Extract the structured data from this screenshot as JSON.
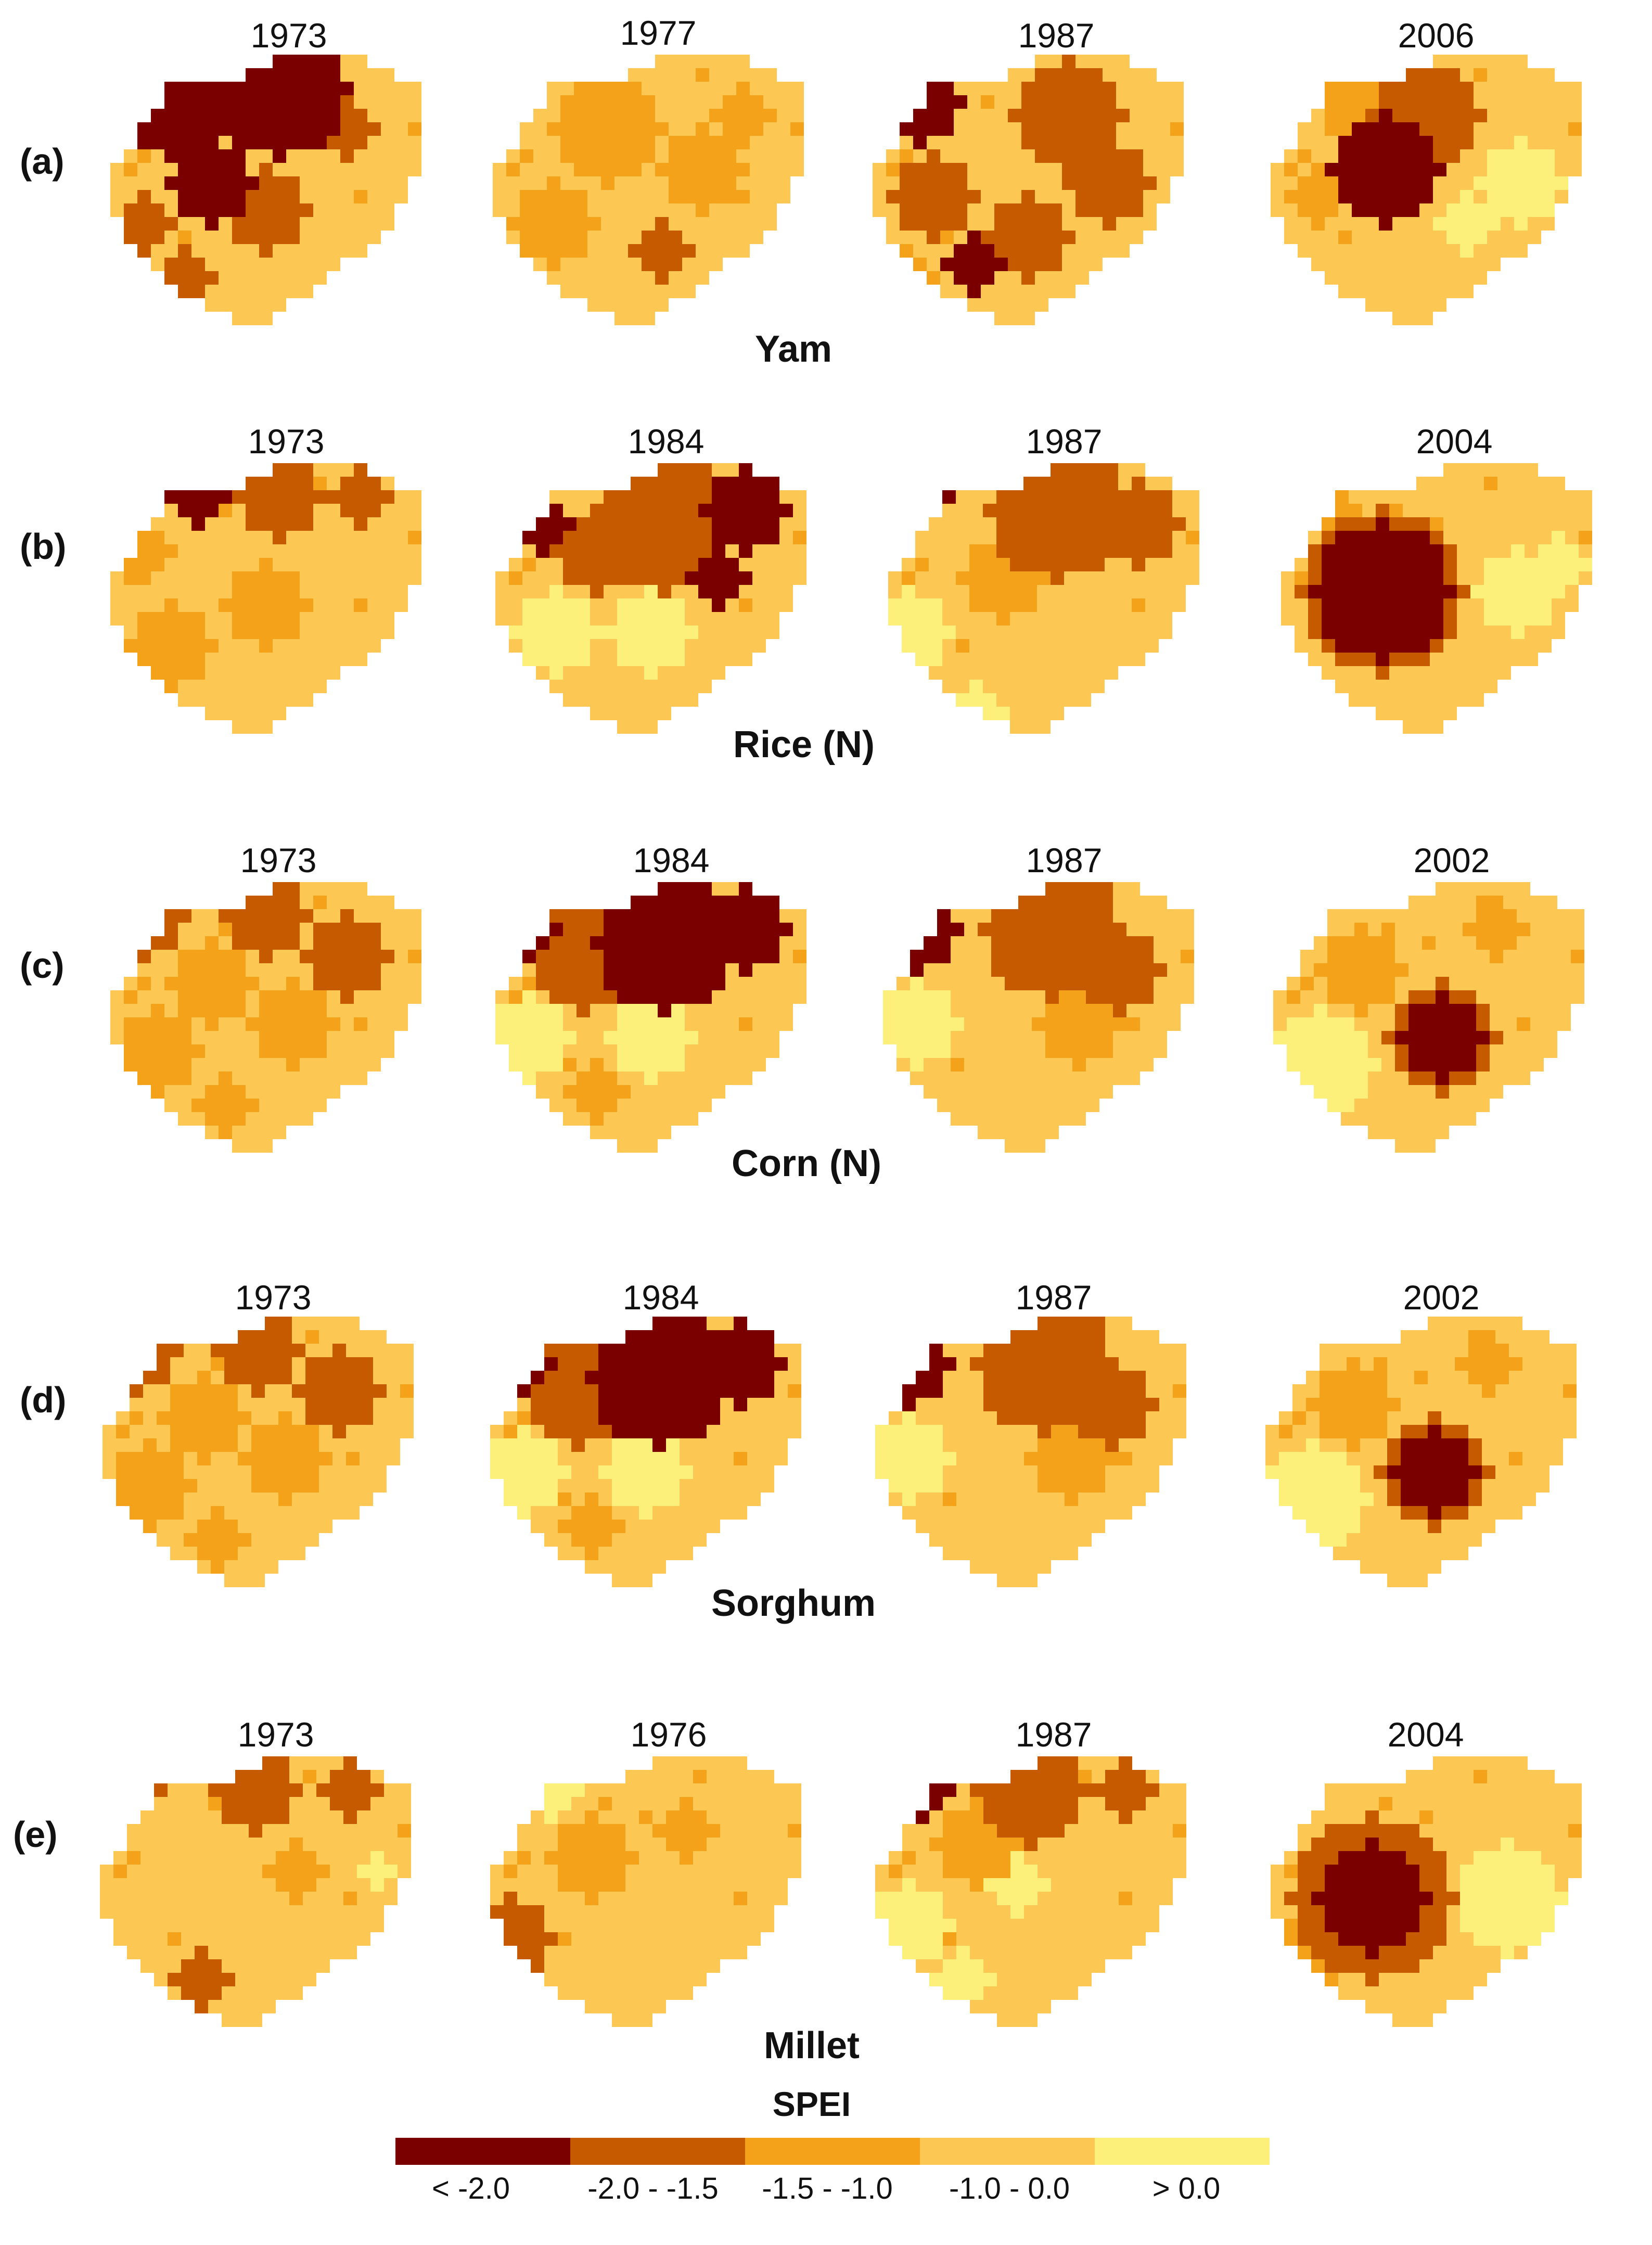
{
  "legend": {
    "title": "SPEI",
    "classes": [
      {
        "label": "< -2.0",
        "color": "#7a0000"
      },
      {
        "label": "-2.0 - -1.5",
        "color": "#c65a00"
      },
      {
        "label": "-1.5 - -1.0",
        "color": "#f3a21a"
      },
      {
        "label": "-1.0 - 0.0",
        "color": "#fcc752"
      },
      {
        "label": "> 0.0",
        "color": "#fdf07a"
      }
    ]
  },
  "rows": [
    {
      "label": "(a)",
      "crop": "Yam",
      "years": [
        "1973",
        "1977",
        "1987",
        "2006"
      ]
    },
    {
      "label": "(b)",
      "crop": "Rice (N)",
      "years": [
        "1973",
        "1984",
        "1987",
        "2004"
      ]
    },
    {
      "label": "(c)",
      "crop": "Corn (N)",
      "years": [
        "1973",
        "1984",
        "1987",
        "2002"
      ]
    },
    {
      "label": "(d)",
      "crop": "Sorghum",
      "years": [
        "1973",
        "1984",
        "1987",
        "2002"
      ]
    },
    {
      "label": "(e)",
      "crop": "Millet",
      "years": [
        "1973",
        "1976",
        "1987",
        "2004"
      ]
    }
  ]
}
